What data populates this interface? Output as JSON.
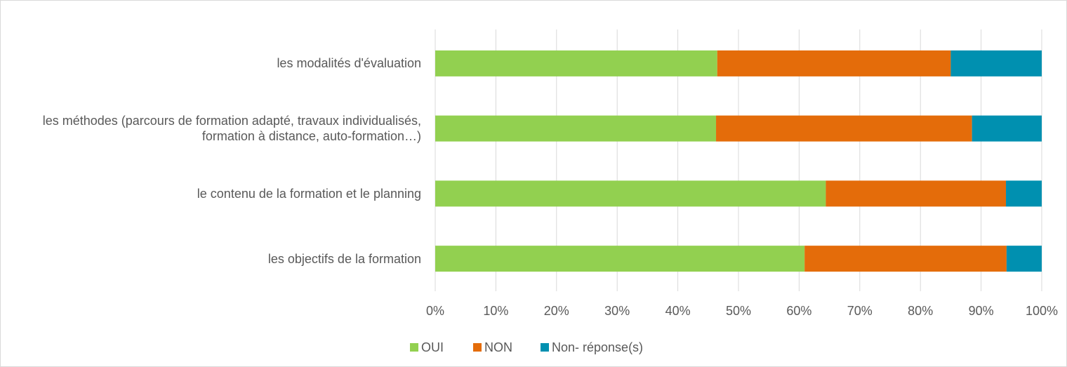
{
  "chart_data": {
    "type": "stacked_barh",
    "categories": [
      "les modalités d'évaluation",
      "les méthodes (parcours de formation adapté, travaux individualisés, formation à distance, auto-formation…)",
      "le contenu de la formation et le planning",
      "les objectifs de la formation"
    ],
    "series": [
      {
        "name": "OUI",
        "color": "#92d050",
        "values": [
          46.5,
          46.3,
          64.4,
          60.9
        ]
      },
      {
        "name": "NON",
        "color": "#e46c0a",
        "values": [
          38.5,
          42.2,
          29.7,
          33.3
        ]
      },
      {
        "name": "Non- réponse(s)",
        "color": "#0090b0",
        "values": [
          15,
          11.5,
          5.9,
          5.8
        ]
      }
    ],
    "xlim": [
      0,
      100
    ],
    "xticks": [
      {
        "value": 0,
        "label": "0%"
      },
      {
        "value": 10,
        "label": "10%"
      },
      {
        "value": 20,
        "label": "20%"
      },
      {
        "value": 30,
        "label": "30%"
      },
      {
        "value": 40,
        "label": "40%"
      },
      {
        "value": 50,
        "label": "50%"
      },
      {
        "value": 60,
        "label": "60%"
      },
      {
        "value": 70,
        "label": "70%"
      },
      {
        "value": 80,
        "label": "80%"
      },
      {
        "value": 90,
        "label": "90%"
      },
      {
        "value": 100,
        "label": "100%"
      }
    ],
    "grid": true,
    "legend": "bottom"
  }
}
